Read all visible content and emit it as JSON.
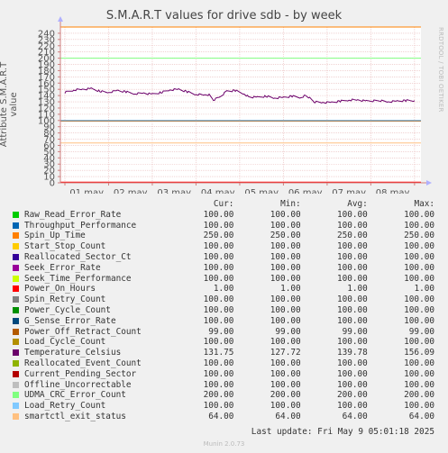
{
  "chart_data": {
    "type": "line",
    "title": "S.M.A.R.T values for drive sdb - by week",
    "ylabel": "Attribute S.M.A.R.T value",
    "ylim": [
      0,
      250
    ],
    "yticks": [
      0,
      10,
      20,
      30,
      40,
      50,
      60,
      70,
      80,
      90,
      100,
      110,
      120,
      130,
      140,
      150,
      160,
      170,
      180,
      190,
      200,
      210,
      220,
      230,
      240
    ],
    "xticks": [
      "01 may",
      "02 may",
      "03 may",
      "04 may",
      "05 may",
      "06 may",
      "07 may",
      "08 may"
    ],
    "grid": true,
    "series": [
      {
        "name": "Raw_Read_Error_Rate",
        "color": "#00cc00",
        "cur": 100,
        "min": 100,
        "avg": 100,
        "max": 100
      },
      {
        "name": "Throughput_Performance",
        "color": "#0066b3",
        "cur": 100,
        "min": 100,
        "avg": 100,
        "max": 100
      },
      {
        "name": "Spin_Up_Time",
        "color": "#ff8000",
        "cur": 250,
        "min": 250,
        "avg": 250,
        "max": 250
      },
      {
        "name": "Start_Stop_Count",
        "color": "#ffcc00",
        "cur": 100,
        "min": 100,
        "avg": 100,
        "max": 100
      },
      {
        "name": "Reallocated_Sector_Ct",
        "color": "#330099",
        "cur": 100,
        "min": 100,
        "avg": 100,
        "max": 100
      },
      {
        "name": "Seek_Error_Rate",
        "color": "#990099",
        "cur": 100,
        "min": 100,
        "avg": 100,
        "max": 100
      },
      {
        "name": "Seek_Time_Performance",
        "color": "#ccff00",
        "cur": 100,
        "min": 100,
        "avg": 100,
        "max": 100
      },
      {
        "name": "Power_On_Hours",
        "color": "#ff0000",
        "cur": 1,
        "min": 1,
        "avg": 1,
        "max": 1
      },
      {
        "name": "Spin_Retry_Count",
        "color": "#808080",
        "cur": 100,
        "min": 100,
        "avg": 100,
        "max": 100
      },
      {
        "name": "Power_Cycle_Count",
        "color": "#008f00",
        "cur": 100,
        "min": 100,
        "avg": 100,
        "max": 100
      },
      {
        "name": "G_Sense_Error_Rate",
        "color": "#00487d",
        "cur": 100,
        "min": 100,
        "avg": 100,
        "max": 100
      },
      {
        "name": "Power_Off_Retract_Count",
        "color": "#b35a00",
        "cur": 99,
        "min": 99,
        "avg": 99,
        "max": 99
      },
      {
        "name": "Load_Cycle_Count",
        "color": "#b38f00",
        "cur": 100,
        "min": 100,
        "avg": 100,
        "max": 100
      },
      {
        "name": "Temperature_Celsius",
        "color": "#6b006b",
        "cur": 131.75,
        "min": 127.72,
        "avg": 139.78,
        "max": 156.09
      },
      {
        "name": "Reallocated_Event_Count",
        "color": "#8fb300",
        "cur": 100,
        "min": 100,
        "avg": 100,
        "max": 100
      },
      {
        "name": "Current_Pending_Sector",
        "color": "#b30000",
        "cur": 100,
        "min": 100,
        "avg": 100,
        "max": 100
      },
      {
        "name": "Offline_Uncorrectable",
        "color": "#bebebe",
        "cur": 100,
        "min": 100,
        "avg": 100,
        "max": 100
      },
      {
        "name": "UDMA_CRC_Error_Count",
        "color": "#80ff80",
        "cur": 200,
        "min": 200,
        "avg": 200,
        "max": 200
      },
      {
        "name": "Load_Retry_Count",
        "color": "#80c9ff",
        "cur": 100,
        "min": 100,
        "avg": 100,
        "max": 100
      },
      {
        "name": "smartctl_exit_status",
        "color": "#ffc080",
        "cur": 64,
        "min": 64,
        "avg": 64,
        "max": 64
      }
    ],
    "temperature_trace": [
      [
        0,
        145
      ],
      [
        0.2,
        149
      ],
      [
        0.4,
        150
      ],
      [
        0.6,
        151
      ],
      [
        0.8,
        147
      ],
      [
        1.0,
        145
      ],
      [
        1.2,
        148
      ],
      [
        1.4,
        146
      ],
      [
        1.6,
        143
      ],
      [
        1.8,
        144
      ],
      [
        2.0,
        142
      ],
      [
        2.2,
        145
      ],
      [
        2.4,
        149
      ],
      [
        2.6,
        150
      ],
      [
        2.8,
        146
      ],
      [
        3.0,
        142
      ],
      [
        3.2,
        141
      ],
      [
        3.3,
        141
      ],
      [
        3.4,
        133
      ],
      [
        3.55,
        138
      ],
      [
        3.7,
        147
      ],
      [
        3.9,
        148
      ],
      [
        4.1,
        143
      ],
      [
        4.2,
        138
      ],
      [
        4.4,
        137
      ],
      [
        4.6,
        139
      ],
      [
        4.8,
        136
      ],
      [
        5.0,
        137
      ],
      [
        5.2,
        139
      ],
      [
        5.4,
        137
      ],
      [
        5.5,
        140
      ],
      [
        5.6,
        136
      ],
      [
        5.7,
        130
      ],
      [
        5.9,
        129
      ],
      [
        6.1,
        129
      ],
      [
        6.3,
        131
      ],
      [
        6.5,
        133
      ],
      [
        6.7,
        133
      ],
      [
        6.9,
        131
      ],
      [
        7.2,
        132
      ],
      [
        7.4,
        130
      ],
      [
        7.6,
        131
      ],
      [
        7.8,
        132
      ],
      [
        8.0,
        132
      ]
    ]
  },
  "legend_header": {
    "cur": "Cur:",
    "min": "Min:",
    "avg": "Avg:",
    "max": "Max:"
  },
  "last_update": "Last update: Fri May  9 05:01:18 2025",
  "side_label": "RRDTOOL / TOBI OETIKER",
  "version": "Munin 2.0.73"
}
